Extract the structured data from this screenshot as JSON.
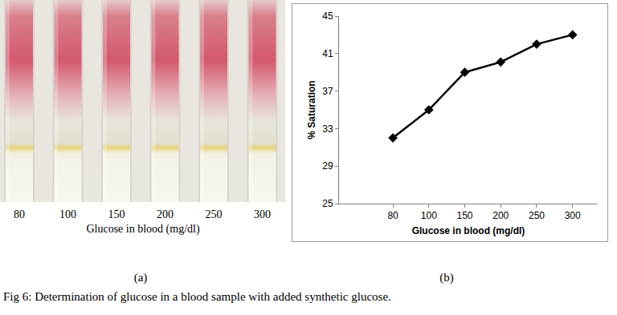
{
  "chart_data": {
    "type": "line",
    "x_label": "Glucose in blood (mg/dl)",
    "y_label": "% Saturation",
    "categories": [
      "80",
      "100",
      "150",
      "200",
      "250",
      "300"
    ],
    "values": [
      32,
      35,
      39,
      40.1,
      42,
      43
    ],
    "color": "#000000",
    "marker": "diamond",
    "ylim": [
      25,
      45
    ],
    "yticks": [
      25,
      29,
      33,
      37,
      41,
      45
    ],
    "grid": false
  },
  "photo": {
    "tube_labels": [
      "80",
      "100",
      "150",
      "200",
      "250",
      "300"
    ],
    "axis_label": "Glucose in blood (mg/dl)"
  },
  "figure": {
    "panel_labels": [
      "(a)",
      "(b)"
    ],
    "caption": "Fig 6: Determination of glucose in a blood sample  with added synthetic glucose."
  }
}
